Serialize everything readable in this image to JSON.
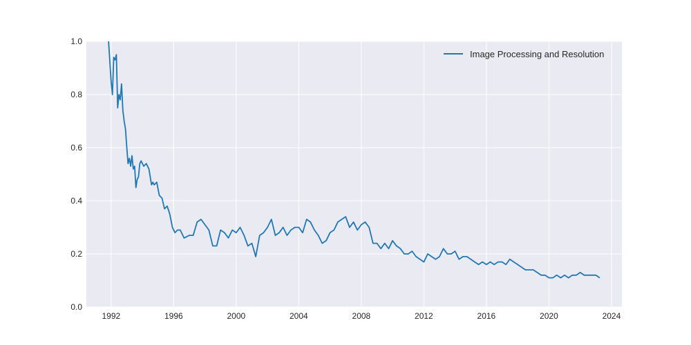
{
  "chart_data": {
    "type": "line",
    "title": "",
    "xlabel": "",
    "ylabel": "",
    "xlim": [
      "1990-06",
      "2024-09"
    ],
    "ylim": [
      0,
      1
    ],
    "x_ticks": [
      "1992",
      "1996",
      "2000",
      "2004",
      "2008",
      "2012",
      "2016",
      "2020",
      "2024"
    ],
    "y_ticks": [
      "0.0",
      "0.2",
      "0.4",
      "0.6",
      "0.8",
      "1.0"
    ],
    "grid": true,
    "legend_position": "top-right",
    "series": [
      {
        "name": "Image Processing and Resolution",
        "color": "#1f77b4",
        "x": [
          "1991-11",
          "1992-01",
          "1992-02",
          "1992-03",
          "1992-04",
          "1992-05",
          "1992-06",
          "1992-07",
          "1992-08",
          "1992-09",
          "1992-10",
          "1992-11",
          "1992-12",
          "1993-01",
          "1993-02",
          "1993-03",
          "1993-04",
          "1993-05",
          "1993-06",
          "1993-07",
          "1993-08",
          "1993-09",
          "1993-10",
          "1993-11",
          "1993-12",
          "1994-02",
          "1994-04",
          "1994-06",
          "1994-08",
          "1994-09",
          "1994-10",
          "1994-12",
          "1995-02",
          "1995-04",
          "1995-06",
          "1995-08",
          "1995-10",
          "1995-12",
          "1996-02",
          "1996-04",
          "1996-06",
          "1996-09",
          "1997-01",
          "1997-04",
          "1997-07",
          "1997-10",
          "1998-01",
          "1998-04",
          "1998-07",
          "1998-10",
          "1999-01",
          "1999-04",
          "1999-07",
          "1999-10",
          "2000-01",
          "2000-04",
          "2000-07",
          "2000-10",
          "2001-01",
          "2001-04",
          "2001-07",
          "2001-10",
          "2002-01",
          "2002-04",
          "2002-07",
          "2002-10",
          "2003-01",
          "2003-04",
          "2003-07",
          "2003-10",
          "2004-01",
          "2004-04",
          "2004-07",
          "2004-10",
          "2005-01",
          "2005-04",
          "2005-07",
          "2005-10",
          "2006-01",
          "2006-04",
          "2006-07",
          "2006-10",
          "2007-01",
          "2007-04",
          "2007-07",
          "2007-10",
          "2008-01",
          "2008-04",
          "2008-07",
          "2008-10",
          "2009-01",
          "2009-04",
          "2009-07",
          "2009-10",
          "2010-01",
          "2010-04",
          "2010-07",
          "2010-10",
          "2011-01",
          "2011-04",
          "2011-07",
          "2011-10",
          "2012-01",
          "2012-04",
          "2012-07",
          "2012-10",
          "2013-01",
          "2013-04",
          "2013-07",
          "2013-10",
          "2014-01",
          "2014-04",
          "2014-07",
          "2014-10",
          "2015-01",
          "2015-04",
          "2015-07",
          "2015-10",
          "2016-01",
          "2016-04",
          "2016-07",
          "2016-10",
          "2017-01",
          "2017-04",
          "2017-07",
          "2017-10",
          "2018-01",
          "2018-04",
          "2018-07",
          "2018-10",
          "2019-01",
          "2019-04",
          "2019-07",
          "2019-10",
          "2020-01",
          "2020-04",
          "2020-07",
          "2020-10",
          "2021-01",
          "2021-04",
          "2021-07",
          "2021-10",
          "2022-01",
          "2022-04",
          "2022-07",
          "2022-10",
          "2023-01",
          "2023-04"
        ],
        "values": [
          1.0,
          0.85,
          0.8,
          0.94,
          0.93,
          0.95,
          0.75,
          0.8,
          0.78,
          0.84,
          0.74,
          0.7,
          0.67,
          0.6,
          0.54,
          0.56,
          0.53,
          0.57,
          0.52,
          0.53,
          0.45,
          0.48,
          0.49,
          0.54,
          0.55,
          0.53,
          0.54,
          0.52,
          0.46,
          0.47,
          0.46,
          0.47,
          0.42,
          0.41,
          0.37,
          0.38,
          0.35,
          0.3,
          0.28,
          0.29,
          0.29,
          0.26,
          0.27,
          0.27,
          0.32,
          0.33,
          0.31,
          0.29,
          0.23,
          0.23,
          0.29,
          0.28,
          0.26,
          0.29,
          0.28,
          0.3,
          0.27,
          0.23,
          0.24,
          0.19,
          0.27,
          0.28,
          0.3,
          0.33,
          0.27,
          0.28,
          0.3,
          0.27,
          0.29,
          0.3,
          0.3,
          0.28,
          0.33,
          0.32,
          0.29,
          0.27,
          0.24,
          0.25,
          0.28,
          0.29,
          0.32,
          0.33,
          0.34,
          0.3,
          0.32,
          0.29,
          0.31,
          0.32,
          0.3,
          0.24,
          0.24,
          0.22,
          0.24,
          0.22,
          0.25,
          0.23,
          0.22,
          0.2,
          0.2,
          0.21,
          0.19,
          0.18,
          0.17,
          0.2,
          0.19,
          0.18,
          0.19,
          0.22,
          0.2,
          0.2,
          0.21,
          0.18,
          0.19,
          0.19,
          0.18,
          0.17,
          0.16,
          0.17,
          0.16,
          0.17,
          0.16,
          0.17,
          0.17,
          0.16,
          0.18,
          0.17,
          0.16,
          0.15,
          0.14,
          0.14,
          0.14,
          0.13,
          0.12,
          0.12,
          0.11,
          0.11,
          0.12,
          0.11,
          0.12,
          0.11,
          0.12,
          0.12,
          0.13,
          0.12,
          0.12,
          0.12,
          0.12,
          0.11
        ]
      }
    ]
  }
}
